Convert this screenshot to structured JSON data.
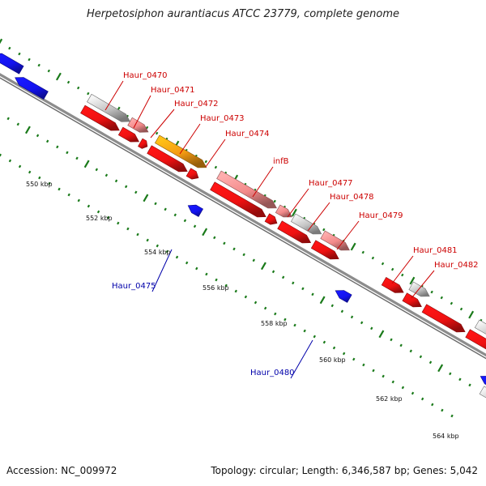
{
  "title": "Herpetosiphon aurantiacus ATCC 23779, complete genome",
  "footer": {
    "accession": "Accession: NC_009972",
    "stats": "Topology: circular; Length: 6,346,587 bp; Genes: 5,042"
  },
  "colors": {
    "backbone": "#8c8c8c",
    "tick": "#1a7a1a",
    "label_forward": "#cc0000",
    "label_reverse": "#0000aa",
    "gene_red": "#ee1111",
    "gene_pink": "#f28a8a",
    "gene_gray": "#c4c4c4",
    "gene_orange": "#f39a12",
    "gene_blue": "#1313ee"
  },
  "scale_labels": [
    "550 kbp",
    "552 kbp",
    "554 kbp",
    "556 kbp",
    "558 kbp",
    "560 kbp",
    "562 kbp",
    "564 kbp"
  ],
  "gene_labels": [
    "Haur_0470",
    "Haur_0471",
    "Haur_0472",
    "Haur_0473",
    "Haur_0474",
    "infB",
    "Haur_0477",
    "Haur_0478",
    "Haur_0479",
    "Haur_0481",
    "Haur_0482",
    "Haur_0475",
    "Haur_0480"
  ]
}
